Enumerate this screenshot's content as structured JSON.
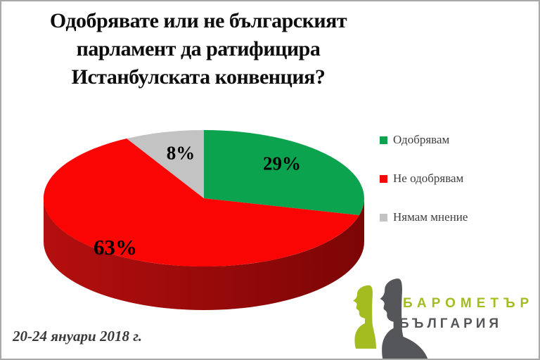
{
  "frame": {
    "background": "#FFFFFF",
    "border_color": "#A9A9A9"
  },
  "title": {
    "lines": [
      "Одобрявате или не българският",
      "парламент да ратифицира",
      "Истанбулската конвенция?"
    ]
  },
  "chart_data": {
    "type": "pie",
    "style": "3d",
    "title": "Одобрявате или не българският парламент да ратифицира Истанбулската конвенция?",
    "start_angle_deg": 0,
    "direction": "clockwise",
    "data_labels": "percent",
    "legend_position": "right",
    "slices": [
      {
        "label": "Одобрявам",
        "value": 29,
        "display": "29%",
        "color": "#0CA34E"
      },
      {
        "label": "Не одобрявам",
        "value": 63,
        "display": "63%",
        "color": "#FB0404"
      },
      {
        "label": "Нямам мнение",
        "value": 8,
        "display": "8%",
        "color": "#C3C3C3"
      }
    ],
    "side_colors": [
      "#B50F0F",
      "#7C0505"
    ],
    "legend_text_color": "#3E3E3E"
  },
  "footer": {
    "survey_period": "20-24 януари 2018 г."
  },
  "logo": {
    "line1": "БАРОМЕТЪР",
    "line2": "БЪЛГАРИЯ",
    "accent_color": "#A4BC20",
    "dark_color": "#54565A"
  }
}
